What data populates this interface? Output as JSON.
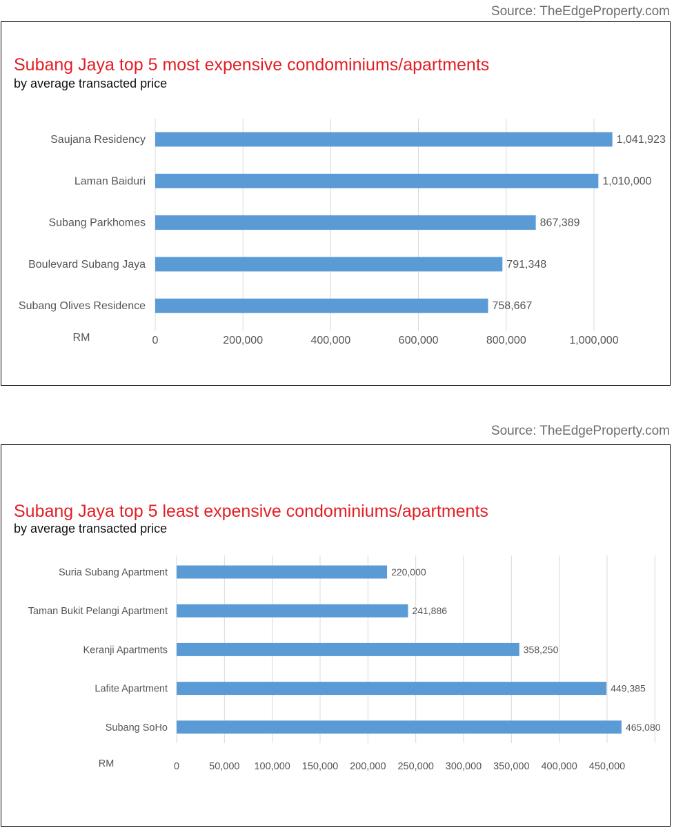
{
  "colors": {
    "bar": "#5b9bd5",
    "title": "#e31e24",
    "grid": "#d9d9d9",
    "text": "#555555"
  },
  "chart_data": [
    {
      "type": "bar",
      "orientation": "horizontal",
      "source": "Source: TheEdgeProperty.com",
      "title": "Subang Jaya top 5 most expensive condominiums/apartments",
      "subtitle": "by average transacted price",
      "unit_label": "RM",
      "categories": [
        "Saujana Residency",
        "Laman Baiduri",
        "Subang Parkhomes",
        "Boulevard Subang Jaya",
        "Subang Olives Residence"
      ],
      "values": [
        1041923,
        1010000,
        867389,
        791348,
        758667
      ],
      "data_labels": [
        "1,041,923",
        "1,010,000",
        "867,389",
        "791,348",
        "758,667"
      ],
      "xticks": [
        0,
        200000,
        400000,
        600000,
        800000,
        1000000
      ],
      "xtick_labels": [
        "0",
        "200,000",
        "400,000",
        "600,000",
        "800,000",
        "1,000,000"
      ],
      "xlim": [
        0,
        1000000
      ],
      "grid": true
    },
    {
      "type": "bar",
      "orientation": "horizontal",
      "source": "Source: TheEdgeProperty.com",
      "title": "Subang Jaya top 5 least expensive condominiums/apartments",
      "subtitle": "by average transacted price",
      "unit_label": "RM",
      "categories": [
        "Suria Subang Apartment",
        "Taman Bukit Pelangi Apartment",
        "Keranji Apartments",
        "Lafite Apartment",
        "Subang SoHo"
      ],
      "values": [
        220000,
        241886,
        358250,
        449385,
        465080
      ],
      "data_labels": [
        "220,000",
        "241,886",
        "358,250",
        "449,385",
        "465,080"
      ],
      "xticks": [
        0,
        50000,
        100000,
        150000,
        200000,
        250000,
        300000,
        350000,
        400000,
        450000
      ],
      "xtick_labels": [
        "0",
        "50,000",
        "100,000",
        "150,000",
        "200,000",
        "250,000",
        "300,000",
        "350,000",
        "400,000",
        "450,000"
      ],
      "xlim": [
        0,
        450000
      ],
      "grid": true
    }
  ]
}
